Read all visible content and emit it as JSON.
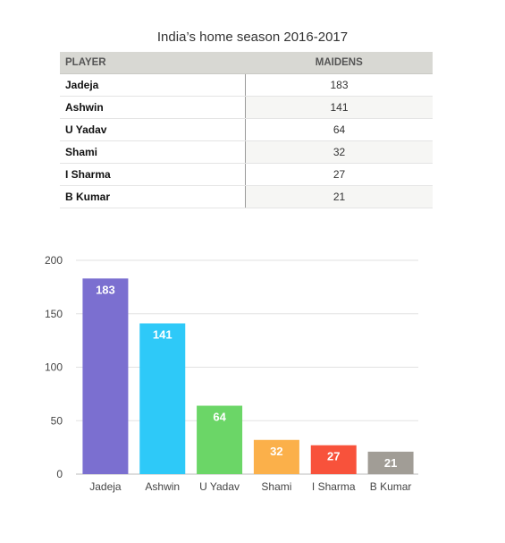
{
  "title": "India’s home season 2016-2017",
  "table": {
    "headers": [
      "PLAYER",
      "MAIDENS"
    ],
    "rows": [
      [
        "Jadeja",
        "183"
      ],
      [
        "Ashwin",
        "141"
      ],
      [
        "U Yadav",
        "64"
      ],
      [
        "Shami",
        "32"
      ],
      [
        "I Sharma",
        "27"
      ],
      [
        "B Kumar",
        "21"
      ]
    ]
  },
  "chart_data": {
    "type": "bar",
    "categories": [
      "Jadeja",
      "Ashwin",
      "U Yadav",
      "Shami",
      "I Sharma",
      "B Kumar"
    ],
    "values": [
      183,
      141,
      64,
      32,
      27,
      21
    ],
    "colors": [
      "#7b6fd0",
      "#2ec9f8",
      "#6bd667",
      "#fbb04a",
      "#f8523b",
      "#a19d96"
    ],
    "ylim": [
      0,
      200
    ],
    "yticks": [
      0,
      50,
      100,
      150,
      200
    ],
    "grid": true,
    "data_labels": true
  }
}
